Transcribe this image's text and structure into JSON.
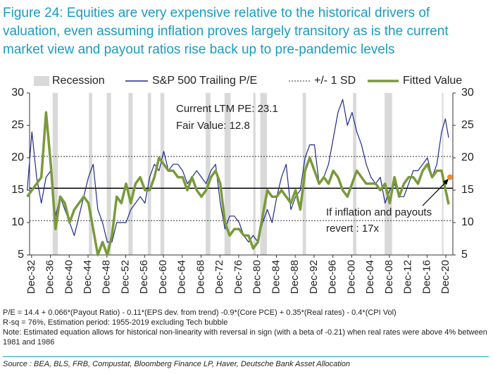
{
  "chart_data": {
    "type": "line",
    "title": "Figure 24: Equities are very expensive relative to the historical drivers of valuation, even assuming inflation proves largely transitory as is the current market view and payout ratios rise back up to pre-pandemic levels",
    "xlim": [
      1932.5,
      2022.4
    ],
    "xticks": [
      {
        "value": 1932.92,
        "label": "Dec-32"
      },
      {
        "value": 1936.92,
        "label": "Dec-36"
      },
      {
        "value": 1940.92,
        "label": "Dec-40"
      },
      {
        "value": 1944.92,
        "label": "Dec-44"
      },
      {
        "value": 1948.92,
        "label": "Dec-48"
      },
      {
        "value": 1952.92,
        "label": "Dec-52"
      },
      {
        "value": 1956.92,
        "label": "Dec-56"
      },
      {
        "value": 1960.92,
        "label": "Dec-60"
      },
      {
        "value": 1964.92,
        "label": "Dec-64"
      },
      {
        "value": 1968.92,
        "label": "Dec-68"
      },
      {
        "value": 1972.92,
        "label": "Dec-72"
      },
      {
        "value": 1976.92,
        "label": "Dec-76"
      },
      {
        "value": 1980.92,
        "label": "Dec-80"
      },
      {
        "value": 1984.92,
        "label": "Dec-84"
      },
      {
        "value": 1988.92,
        "label": "Dec-88"
      },
      {
        "value": 1992.92,
        "label": "Dec-92"
      },
      {
        "value": 1996.92,
        "label": "Dec-96"
      },
      {
        "value": 2000.92,
        "label": "Dec-00"
      },
      {
        "value": 2004.92,
        "label": "Dec-04"
      },
      {
        "value": 2008.92,
        "label": "Dec-08"
      },
      {
        "value": 2012.92,
        "label": "Dec-12"
      },
      {
        "value": 2016.92,
        "label": "Dec-16"
      },
      {
        "value": 2020.92,
        "label": "Dec-20"
      }
    ],
    "ylim": [
      5,
      30
    ],
    "yticks": [
      5,
      10,
      15,
      20,
      25,
      30
    ],
    "recession": {
      "name": "Recession",
      "color": "#d9d9d9",
      "spans": [
        [
          1937.4,
          1938.5
        ],
        [
          1945.1,
          1945.8
        ],
        [
          1948.9,
          1949.8
        ],
        [
          1953.5,
          1954.4
        ],
        [
          1957.6,
          1958.3
        ],
        [
          1960.3,
          1961.1
        ],
        [
          1969.9,
          1970.9
        ],
        [
          1973.9,
          1975.2
        ],
        [
          1980.0,
          1980.5
        ],
        [
          1981.5,
          1982.9
        ],
        [
          1990.5,
          1991.2
        ],
        [
          2001.2,
          2001.9
        ],
        [
          2007.9,
          2009.5
        ],
        [
          2020.1,
          2020.4
        ]
      ]
    },
    "series": [
      {
        "name": "S&P 500 Trailing P/E",
        "color": "#1f2a8a",
        "x": [
          1932,
          1933,
          1934,
          1935,
          1936,
          1937,
          1938,
          1939,
          1940,
          1941,
          1942,
          1943,
          1944,
          1945,
          1946,
          1947,
          1948,
          1949,
          1950,
          1951,
          1952,
          1953,
          1954,
          1955,
          1956,
          1957,
          1958,
          1959,
          1960,
          1961,
          1962,
          1963,
          1964,
          1965,
          1966,
          1967,
          1968,
          1969,
          1970,
          1971,
          1972,
          1973,
          1974,
          1975,
          1976,
          1977,
          1978,
          1979,
          1980,
          1981,
          1982,
          1983,
          1984,
          1985,
          1986,
          1987,
          1988,
          1989,
          1990,
          1991,
          1992,
          1993,
          1994,
          1995,
          1996,
          1997,
          1998,
          1999,
          2000,
          2001,
          2002,
          2003,
          2004,
          2005,
          2006,
          2007,
          2008,
          2009,
          2010,
          2011,
          2012,
          2013,
          2014,
          2015,
          2016,
          2017,
          2018,
          2019,
          2020,
          2020.8,
          2021.5
        ],
        "values": [
          15,
          24,
          17,
          13,
          17,
          18,
          11,
          14,
          12,
          10,
          8,
          11,
          14,
          17,
          19,
          12,
          10,
          7,
          7,
          10,
          10,
          10,
          12,
          13,
          14,
          13,
          17,
          19,
          18,
          21,
          18,
          19,
          19,
          18,
          16,
          17,
          18,
          17,
          16,
          18,
          19,
          13,
          9,
          11,
          11,
          10,
          8,
          7,
          8,
          7,
          10,
          12,
          10,
          14,
          17,
          19,
          12,
          14,
          15,
          20,
          22,
          22,
          16,
          17,
          19,
          23,
          27,
          29,
          25,
          27,
          24,
          22,
          19,
          17,
          16,
          17,
          13,
          15,
          16,
          14,
          14,
          16,
          18,
          18,
          19,
          20,
          17,
          19,
          24,
          26,
          23.1
        ]
      },
      {
        "name": "Fitted Value",
        "color": "#7a9a3a",
        "x": [
          1932,
          1935,
          1936,
          1937,
          1938,
          1939,
          1940,
          1941,
          1942,
          1943,
          1944,
          1945,
          1946,
          1947,
          1948,
          1949,
          1950,
          1951,
          1952,
          1953,
          1954,
          1955,
          1956,
          1957,
          1958,
          1959,
          1960,
          1961,
          1962,
          1963,
          1964,
          1965,
          1966,
          1967,
          1968,
          1969,
          1970,
          1971,
          1972,
          1973,
          1974,
          1975,
          1976,
          1977,
          1978,
          1979,
          1980,
          1981,
          1982,
          1983,
          1984,
          1985,
          1986,
          1987,
          1988,
          1989,
          1990,
          1991,
          1992,
          1993,
          1994,
          1995,
          1996,
          1997,
          1998,
          1999,
          2000,
          2001,
          2002,
          2003,
          2004,
          2005,
          2006,
          2007,
          2008,
          2009,
          2010,
          2011,
          2012,
          2013,
          2014,
          2015,
          2016,
          2017,
          2018,
          2019,
          2020,
          2021.5
        ],
        "values": [
          14,
          17,
          27,
          19,
          9,
          14,
          13,
          10,
          12,
          13,
          14,
          13,
          9,
          5,
          7,
          5,
          8,
          14,
          13,
          16,
          13,
          16,
          17,
          15,
          15,
          17,
          20,
          19,
          18,
          18,
          17,
          17,
          15,
          17,
          15,
          14,
          15,
          17,
          18,
          16,
          10,
          8,
          9,
          9,
          8,
          8,
          6,
          7,
          11,
          15,
          14,
          14,
          15,
          14,
          13,
          15,
          12,
          18,
          20,
          18,
          16,
          17,
          16,
          18,
          17,
          15,
          14,
          16,
          18,
          17,
          16,
          16,
          16,
          15,
          16,
          13,
          17,
          14,
          16,
          17,
          17,
          16,
          18,
          19,
          17,
          18,
          18,
          12.8
        ]
      }
    ],
    "mean_line": 15.3,
    "sd_lines": {
      "name": "+/- 1 SD",
      "values": [
        20.2,
        10.3
      ]
    },
    "target": {
      "x": 2021.8,
      "value": 17,
      "color": "#f28c28"
    },
    "annotations": [
      "Current LTM PE: 23.1",
      "Fair Value: 12.8",
      "If inflation and payouts",
      "revert : 17x"
    ],
    "notes": [
      "P/E = 14.4 + 0.066*(Payout Ratio) - 0.11*(EPS dev. from trend) -0.9*(Core PCE) + 0.35*(Real rates) - 0.4*(CPI Vol)",
      "R-sq = 76%, Estimation period: 1955-2019 excluding Tech bubble",
      "Note: Estimated equation allows for historical non-linearity with reversal in sign (with a beta of -0.21) when real rates were above 4% between 1981 and 1986"
    ],
    "source": "Source : BEA, BLS, FRB, Compustat, Bloomberg Finance LP, Haver, Deutsche Bank Asset Allocation"
  }
}
